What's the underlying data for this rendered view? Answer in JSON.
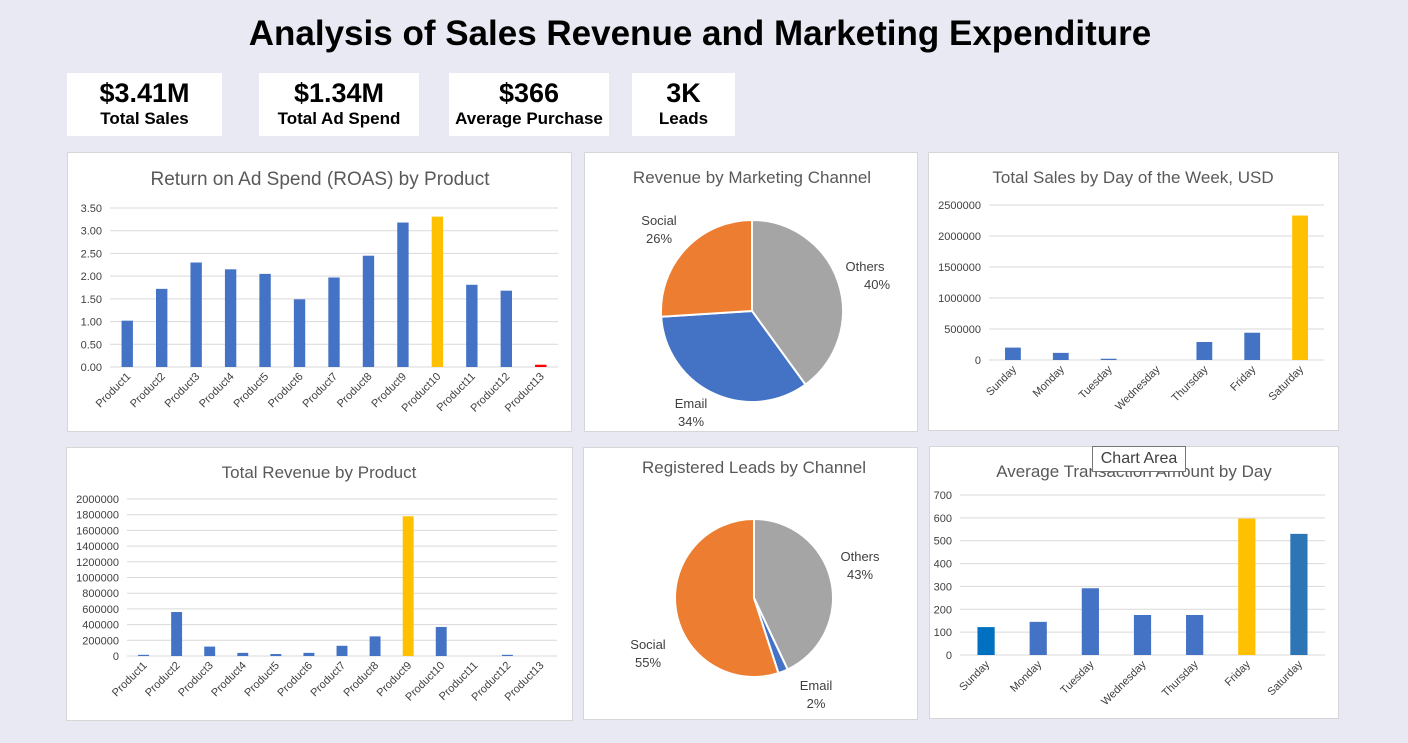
{
  "dashboard": {
    "title": "Analysis of Sales Revenue and Marketing Expenditure"
  },
  "kpis": [
    {
      "value": "$3.41M",
      "label": "Total Sales"
    },
    {
      "value": "$1.34M",
      "label": "Total Ad Spend"
    },
    {
      "value": "$366",
      "label": "Average Purchase"
    },
    {
      "value": "3K",
      "label": "Leads"
    }
  ],
  "tooltip": {
    "text": "Chart Area"
  },
  "colors": {
    "blue": "#4472c4",
    "gold": "#ffc000",
    "red": "#ff0000",
    "orange": "#ed7d31",
    "gray": "#a5a5a5",
    "darkblue": "#2e75b6",
    "midblue": "#0070c0"
  },
  "chart_data": [
    {
      "id": "roas",
      "type": "bar",
      "title": "Return on Ad Spend (ROAS) by Product",
      "categories": [
        "Product1",
        "Product2",
        "Product3",
        "Product4",
        "Product5",
        "Product6",
        "Product7",
        "Product8",
        "Product9",
        "Product10",
        "Product11",
        "Product12",
        "Product13"
      ],
      "values": [
        1.02,
        1.72,
        2.3,
        2.15,
        2.05,
        1.49,
        1.97,
        2.45,
        3.18,
        3.31,
        1.81,
        1.68,
        0.05
      ],
      "colors": [
        "#4472c4",
        "#4472c4",
        "#4472c4",
        "#4472c4",
        "#4472c4",
        "#4472c4",
        "#4472c4",
        "#4472c4",
        "#4472c4",
        "#ffc000",
        "#4472c4",
        "#4472c4",
        "#ff0000"
      ],
      "ylim": [
        0,
        3.5
      ],
      "yticks": [
        "0.00",
        "0.50",
        "1.00",
        "1.50",
        "2.00",
        "2.50",
        "3.00",
        "3.50"
      ],
      "grid": true
    },
    {
      "id": "revenue_channel",
      "type": "pie",
      "title": "Revenue by Marketing Channel",
      "labels": [
        "Others",
        "Email",
        "Social"
      ],
      "values": [
        40,
        34,
        26
      ],
      "pct_labels": [
        "40%",
        "34%",
        "26%"
      ],
      "colors": [
        "#a5a5a5",
        "#4472c4",
        "#ed7d31"
      ]
    },
    {
      "id": "sales_day",
      "type": "bar",
      "title": "Total Sales by Day of the Week, USD",
      "categories": [
        "Sunday",
        "Monday",
        "Tuesday",
        "Wednesday",
        "Thursday",
        "Friday",
        "Saturday"
      ],
      "values": [
        200000,
        115000,
        20000,
        0,
        290000,
        440000,
        2330000
      ],
      "colors": [
        "#4472c4",
        "#4472c4",
        "#4472c4",
        "#4472c4",
        "#4472c4",
        "#4472c4",
        "#ffc000"
      ],
      "ylim": [
        0,
        2500000
      ],
      "yticks": [
        "0",
        "500000",
        "1000000",
        "1500000",
        "2000000",
        "2500000"
      ],
      "grid": true
    },
    {
      "id": "revenue_product",
      "type": "bar",
      "title": "Total Revenue by Product",
      "categories": [
        "Product1",
        "Product2",
        "Product3",
        "Product4",
        "Product5",
        "Product6",
        "Product7",
        "Product8",
        "Product9",
        "Product10",
        "Product11",
        "Product12",
        "Product13"
      ],
      "values": [
        15000,
        560000,
        120000,
        40000,
        25000,
        40000,
        130000,
        250000,
        1780000,
        370000,
        0,
        15000,
        0
      ],
      "colors": [
        "#4472c4",
        "#4472c4",
        "#4472c4",
        "#4472c4",
        "#4472c4",
        "#4472c4",
        "#4472c4",
        "#4472c4",
        "#ffc000",
        "#4472c4",
        "#4472c4",
        "#4472c4",
        "#4472c4"
      ],
      "ylim": [
        0,
        2000000
      ],
      "yticks": [
        "0",
        "200000",
        "400000",
        "600000",
        "800000",
        "1000000",
        "1200000",
        "1400000",
        "1600000",
        "1800000",
        "2000000"
      ],
      "grid": true
    },
    {
      "id": "leads_channel",
      "type": "pie",
      "title": "Registered Leads by Channel",
      "labels": [
        "Others",
        "Email",
        "Social"
      ],
      "values": [
        43,
        2,
        55
      ],
      "pct_labels": [
        "43%",
        "2%",
        "55%"
      ],
      "colors": [
        "#a5a5a5",
        "#4472c4",
        "#ed7d31"
      ]
    },
    {
      "id": "avg_day",
      "type": "bar",
      "title": "Average Transaction Amount by Day",
      "categories": [
        "Sunday",
        "Monday",
        "Tuesday",
        "Wednesday",
        "Thursday",
        "Friday",
        "Saturday"
      ],
      "values": [
        122,
        145,
        292,
        175,
        175,
        597,
        530
      ],
      "colors": [
        "#0070c0",
        "#4472c4",
        "#4472c4",
        "#4472c4",
        "#4472c4",
        "#ffc000",
        "#2e75b6"
      ],
      "ylim": [
        0,
        700
      ],
      "yticks": [
        "0",
        "100",
        "200",
        "300",
        "400",
        "500",
        "600",
        "700"
      ],
      "grid": true
    }
  ]
}
